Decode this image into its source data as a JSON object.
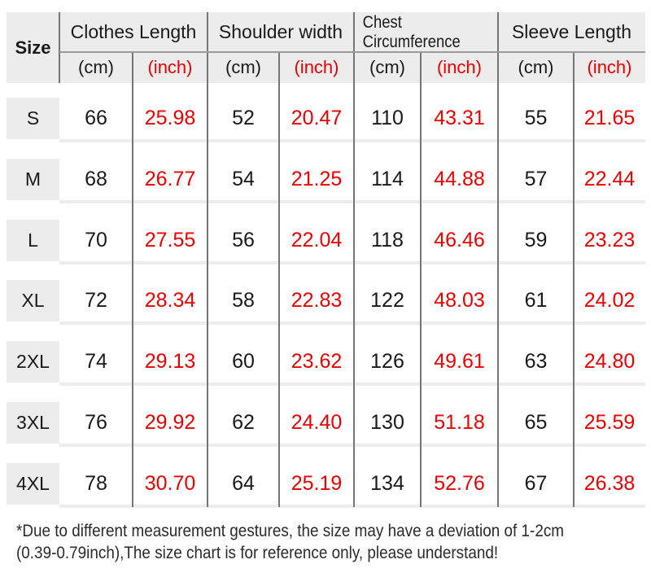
{
  "colors": {
    "accent_red": "#ee0000",
    "header_bg": "#ececec",
    "grid_line": "#757575",
    "header_divider": "#9b9b9b",
    "row_divider": "#ededed",
    "text": "#1a1a1a"
  },
  "chart_data": {
    "type": "table",
    "corner_label": "Size",
    "column_groups": [
      "Clothes Length",
      "Shoulder width",
      "Chest Circumference",
      "Sleeve Length"
    ],
    "unit_labels": {
      "cm": "(cm)",
      "inch": "(inch)"
    },
    "columns": [
      "Size",
      "Clothes Length (cm)",
      "Clothes Length (inch)",
      "Shoulder width (cm)",
      "Shoulder width (inch)",
      "Chest Circumference (cm)",
      "Chest Circumference (inch)",
      "Sleeve Length (cm)",
      "Sleeve Length (inch)"
    ],
    "rows": [
      {
        "size": "S",
        "values": [
          "66",
          "25.98",
          "52",
          "20.47",
          "110",
          "43.31",
          "55",
          "21.65"
        ]
      },
      {
        "size": "M",
        "values": [
          "68",
          "26.77",
          "54",
          "21.25",
          "114",
          "44.88",
          "57",
          "22.44"
        ]
      },
      {
        "size": "L",
        "values": [
          "70",
          "27.55",
          "56",
          "22.04",
          "118",
          "46.46",
          "59",
          "23.23"
        ]
      },
      {
        "size": "XL",
        "values": [
          "72",
          "28.34",
          "58",
          "22.83",
          "122",
          "48.03",
          "61",
          "24.02"
        ]
      },
      {
        "size": "2XL",
        "values": [
          "74",
          "29.13",
          "60",
          "23.62",
          "126",
          "49.61",
          "63",
          "24.80"
        ]
      },
      {
        "size": "3XL",
        "values": [
          "76",
          "29.92",
          "62",
          "24.40",
          "130",
          "51.18",
          "65",
          "25.59"
        ]
      },
      {
        "size": "4XL",
        "values": [
          "78",
          "30.70",
          "64",
          "25.19",
          "134",
          "52.76",
          "67",
          "26.38"
        ]
      }
    ]
  },
  "footnote": {
    "line1": "*Due to different measurement gestures, the size may have a deviation of 1-2cm",
    "line2": "(0.39-0.79inch),The size chart is for reference only, please understand!"
  }
}
